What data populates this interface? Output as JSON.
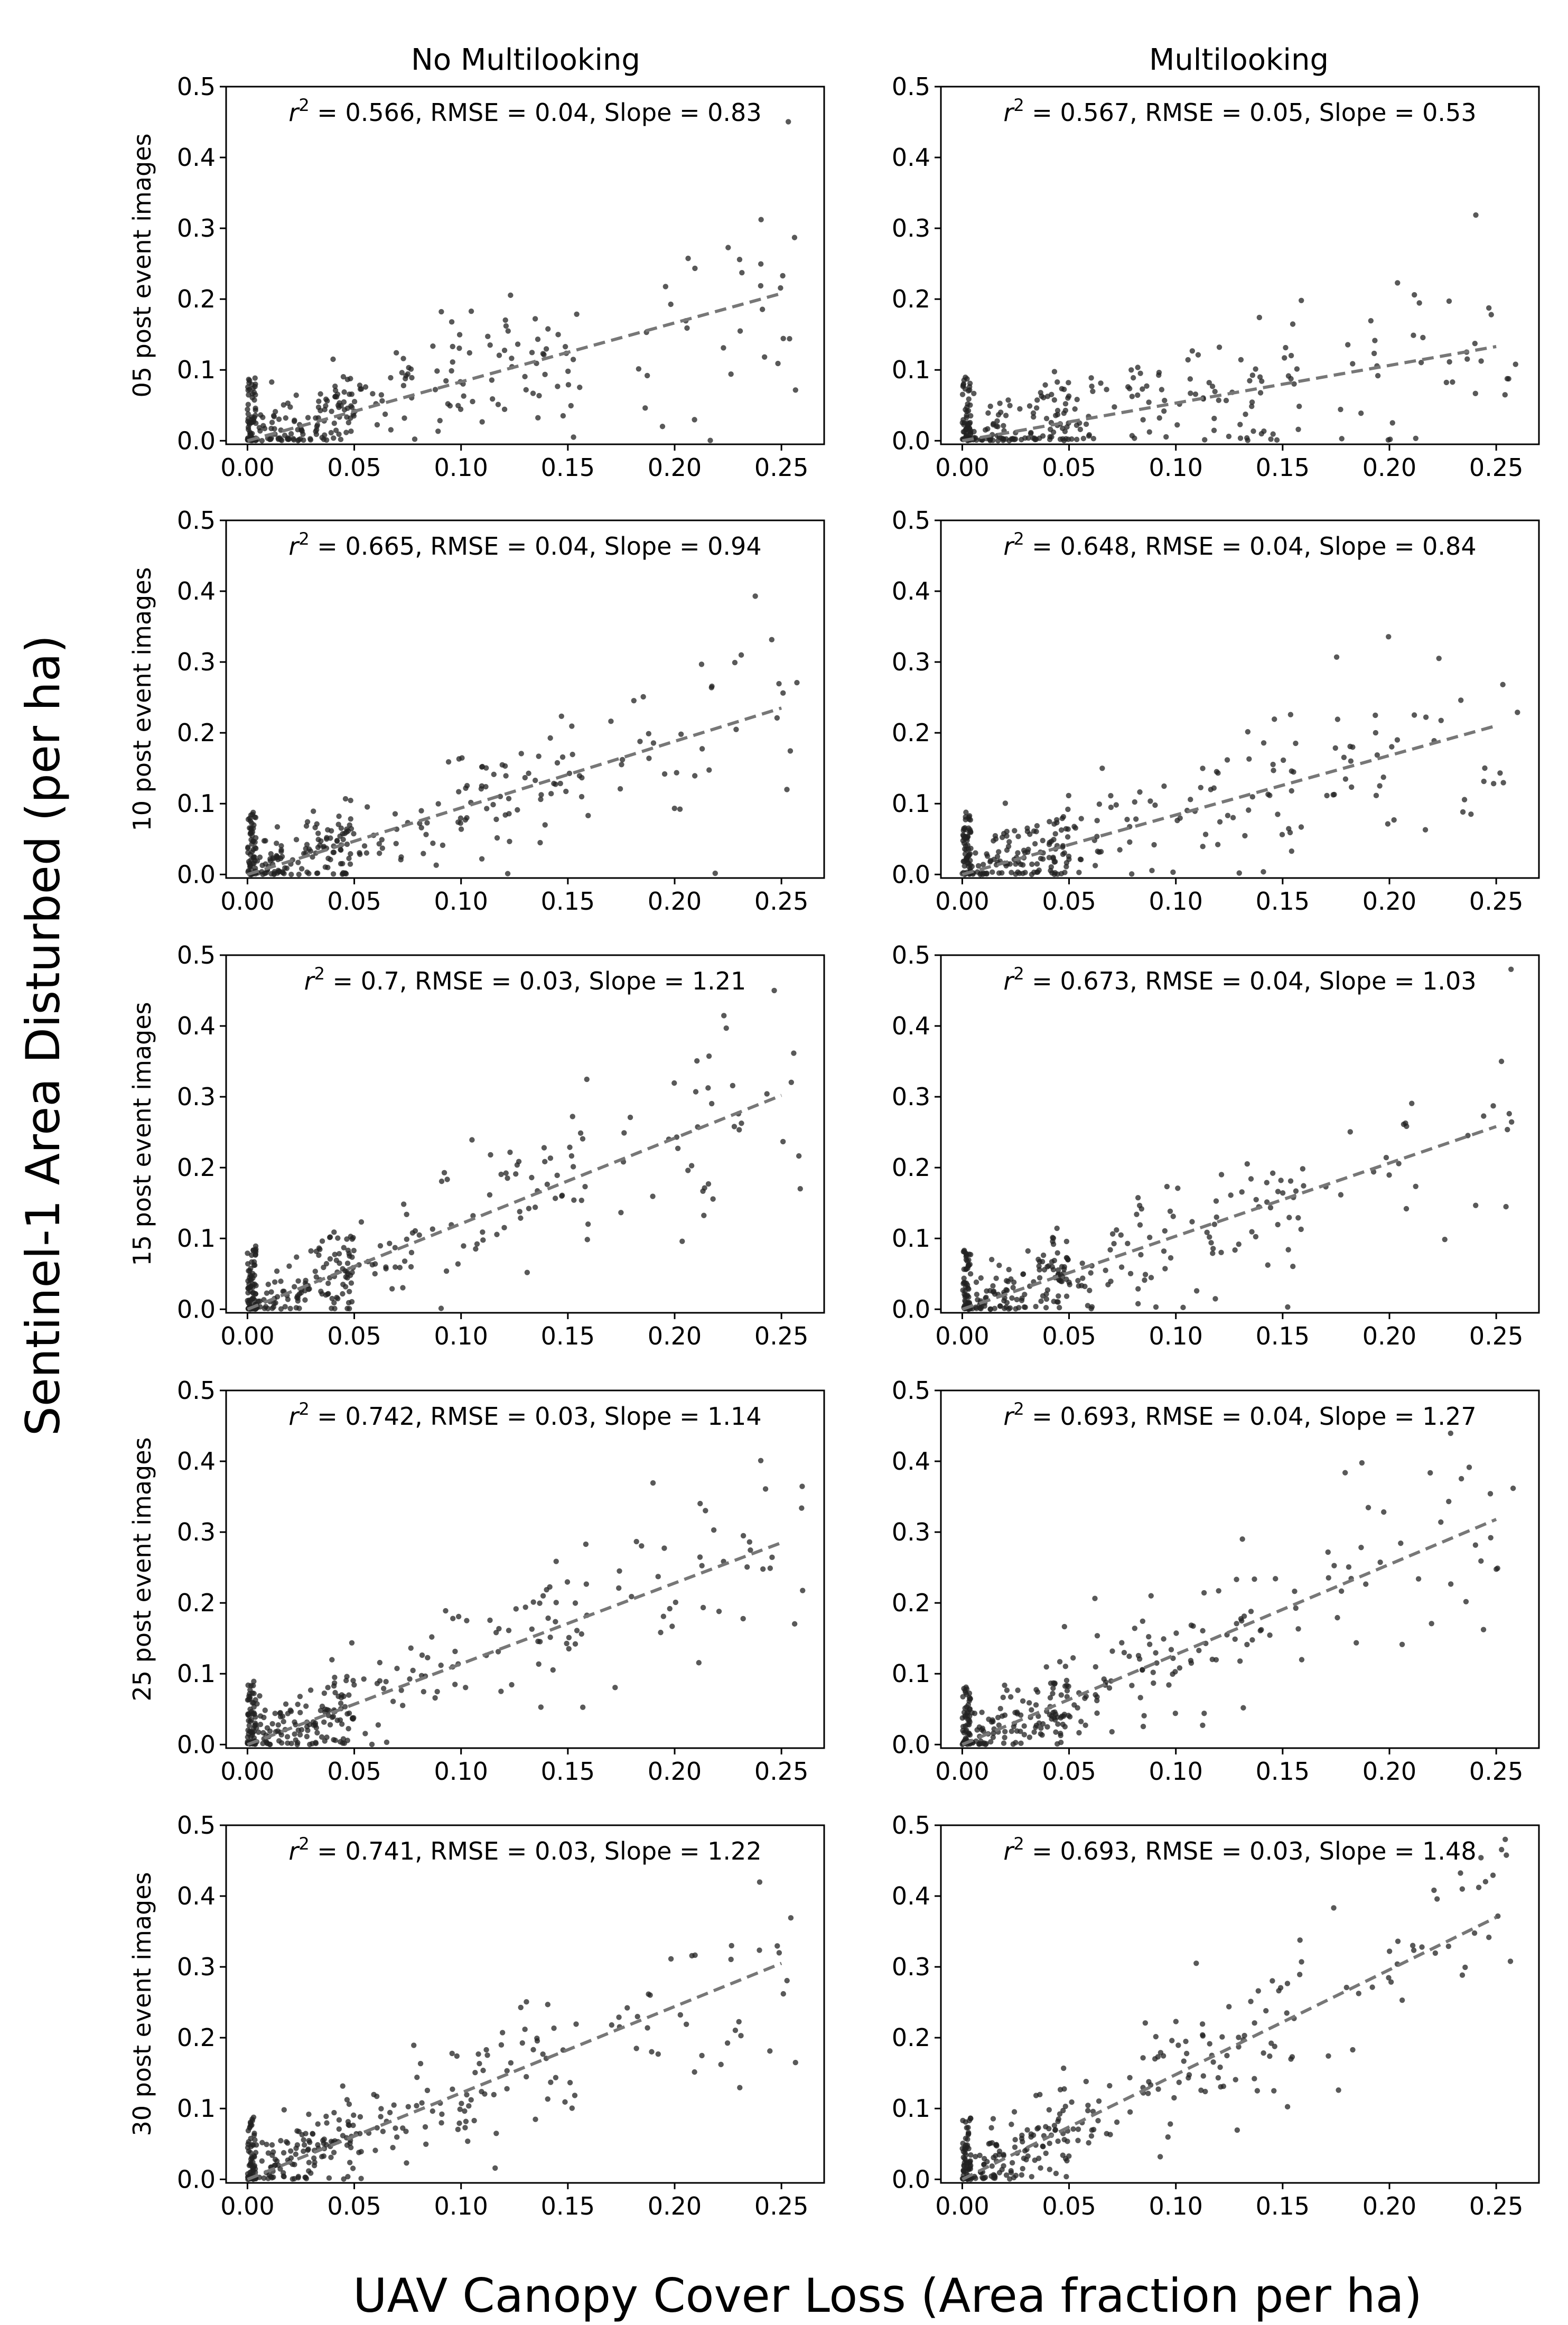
{
  "figure": {
    "ylabel": "Sentinel-1 Area Disturbed (per ha)",
    "xlabel": "UAV Canopy Cover Loss (Area fraction per ha)",
    "columns": [
      "No Multilooking",
      "Multilooking"
    ],
    "rows": [
      "05 post event images",
      "10 post event images",
      "15 post event images",
      "25 post event images",
      "30 post event images"
    ],
    "x_ticks": [
      "0.00",
      "0.05",
      "0.10",
      "0.15",
      "0.20",
      "0.25"
    ],
    "y_ticks": [
      "0.0",
      "0.1",
      "0.2",
      "0.3",
      "0.4",
      "0.5"
    ]
  },
  "chart_data": [
    {
      "type": "scatter",
      "row": "05 post event images",
      "column": "No Multilooking",
      "r2": "0.566",
      "rmse": "0.04",
      "slope": "0.83",
      "trend": [
        [
          0.0,
          0.0
        ],
        [
          0.25,
          0.208
        ]
      ],
      "xlim": [
        -0.01,
        0.27
      ],
      "ylim": [
        -0.005,
        0.5
      ]
    },
    {
      "type": "scatter",
      "row": "05 post event images",
      "column": "Multilooking",
      "r2": "0.567",
      "rmse": "0.05",
      "slope": "0.53",
      "trend": [
        [
          0.0,
          0.0
        ],
        [
          0.25,
          0.133
        ]
      ],
      "xlim": [
        -0.01,
        0.27
      ],
      "ylim": [
        -0.005,
        0.5
      ]
    },
    {
      "type": "scatter",
      "row": "10 post event images",
      "column": "No Multilooking",
      "r2": "0.665",
      "rmse": "0.04",
      "slope": "0.94",
      "trend": [
        [
          0.0,
          0.0
        ],
        [
          0.25,
          0.235
        ]
      ],
      "xlim": [
        -0.01,
        0.27
      ],
      "ylim": [
        -0.005,
        0.5
      ]
    },
    {
      "type": "scatter",
      "row": "10 post event images",
      "column": "Multilooking",
      "r2": "0.648",
      "rmse": "0.04",
      "slope": "0.84",
      "trend": [
        [
          0.0,
          0.0
        ],
        [
          0.25,
          0.21
        ]
      ],
      "xlim": [
        -0.01,
        0.27
      ],
      "ylim": [
        -0.005,
        0.5
      ]
    },
    {
      "type": "scatter",
      "row": "15 post event images",
      "column": "No Multilooking",
      "r2": "0.7",
      "rmse": "0.03",
      "slope": "1.21",
      "trend": [
        [
          0.0,
          0.0
        ],
        [
          0.25,
          0.302
        ]
      ],
      "xlim": [
        -0.01,
        0.27
      ],
      "ylim": [
        -0.005,
        0.5
      ]
    },
    {
      "type": "scatter",
      "row": "15 post event images",
      "column": "Multilooking",
      "r2": "0.673",
      "rmse": "0.04",
      "slope": "1.03",
      "trend": [
        [
          0.0,
          0.0
        ],
        [
          0.25,
          0.258
        ]
      ],
      "xlim": [
        -0.01,
        0.27
      ],
      "ylim": [
        -0.005,
        0.5
      ]
    },
    {
      "type": "scatter",
      "row": "25 post event images",
      "column": "No Multilooking",
      "r2": "0.742",
      "rmse": "0.03",
      "slope": "1.14",
      "trend": [
        [
          0.0,
          0.0
        ],
        [
          0.25,
          0.285
        ]
      ],
      "xlim": [
        -0.01,
        0.27
      ],
      "ylim": [
        -0.005,
        0.5
      ]
    },
    {
      "type": "scatter",
      "row": "25 post event images",
      "column": "Multilooking",
      "r2": "0.693",
      "rmse": "0.04",
      "slope": "1.27",
      "trend": [
        [
          0.0,
          0.0
        ],
        [
          0.25,
          0.318
        ]
      ],
      "xlim": [
        -0.01,
        0.27
      ],
      "ylim": [
        -0.005,
        0.5
      ]
    },
    {
      "type": "scatter",
      "row": "30 post event images",
      "column": "No Multilooking",
      "r2": "0.741",
      "rmse": "0.03",
      "slope": "1.22",
      "trend": [
        [
          0.0,
          0.0
        ],
        [
          0.25,
          0.305
        ]
      ],
      "xlim": [
        -0.01,
        0.27
      ],
      "ylim": [
        -0.005,
        0.5
      ]
    },
    {
      "type": "scatter",
      "row": "30 post event images",
      "column": "Multilooking",
      "r2": "0.693",
      "rmse": "0.03",
      "slope": "1.48",
      "trend": [
        [
          0.0,
          0.0
        ],
        [
          0.25,
          0.37
        ]
      ],
      "xlim": [
        -0.01,
        0.27
      ],
      "ylim": [
        -0.005,
        0.5
      ]
    }
  ]
}
